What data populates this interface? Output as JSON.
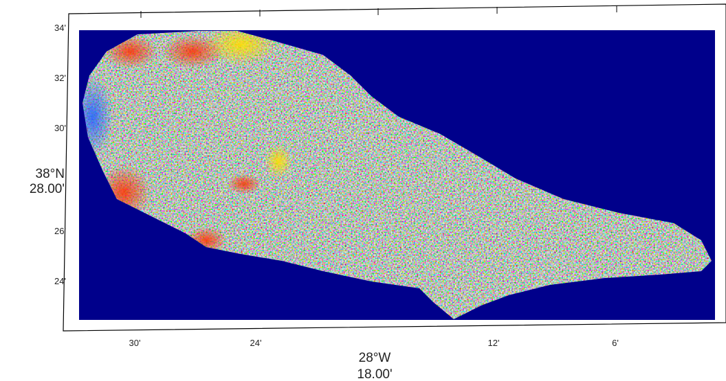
{
  "map": {
    "y_labels": [
      "34'",
      "32'",
      "30'",
      "26'",
      "24'"
    ],
    "center_lat": [
      "38°N",
      "28.00'"
    ],
    "x_labels": [
      "30'",
      "24'",
      "12'",
      "6'"
    ],
    "center_lon": [
      "28°W",
      "18.00'"
    ]
  }
}
